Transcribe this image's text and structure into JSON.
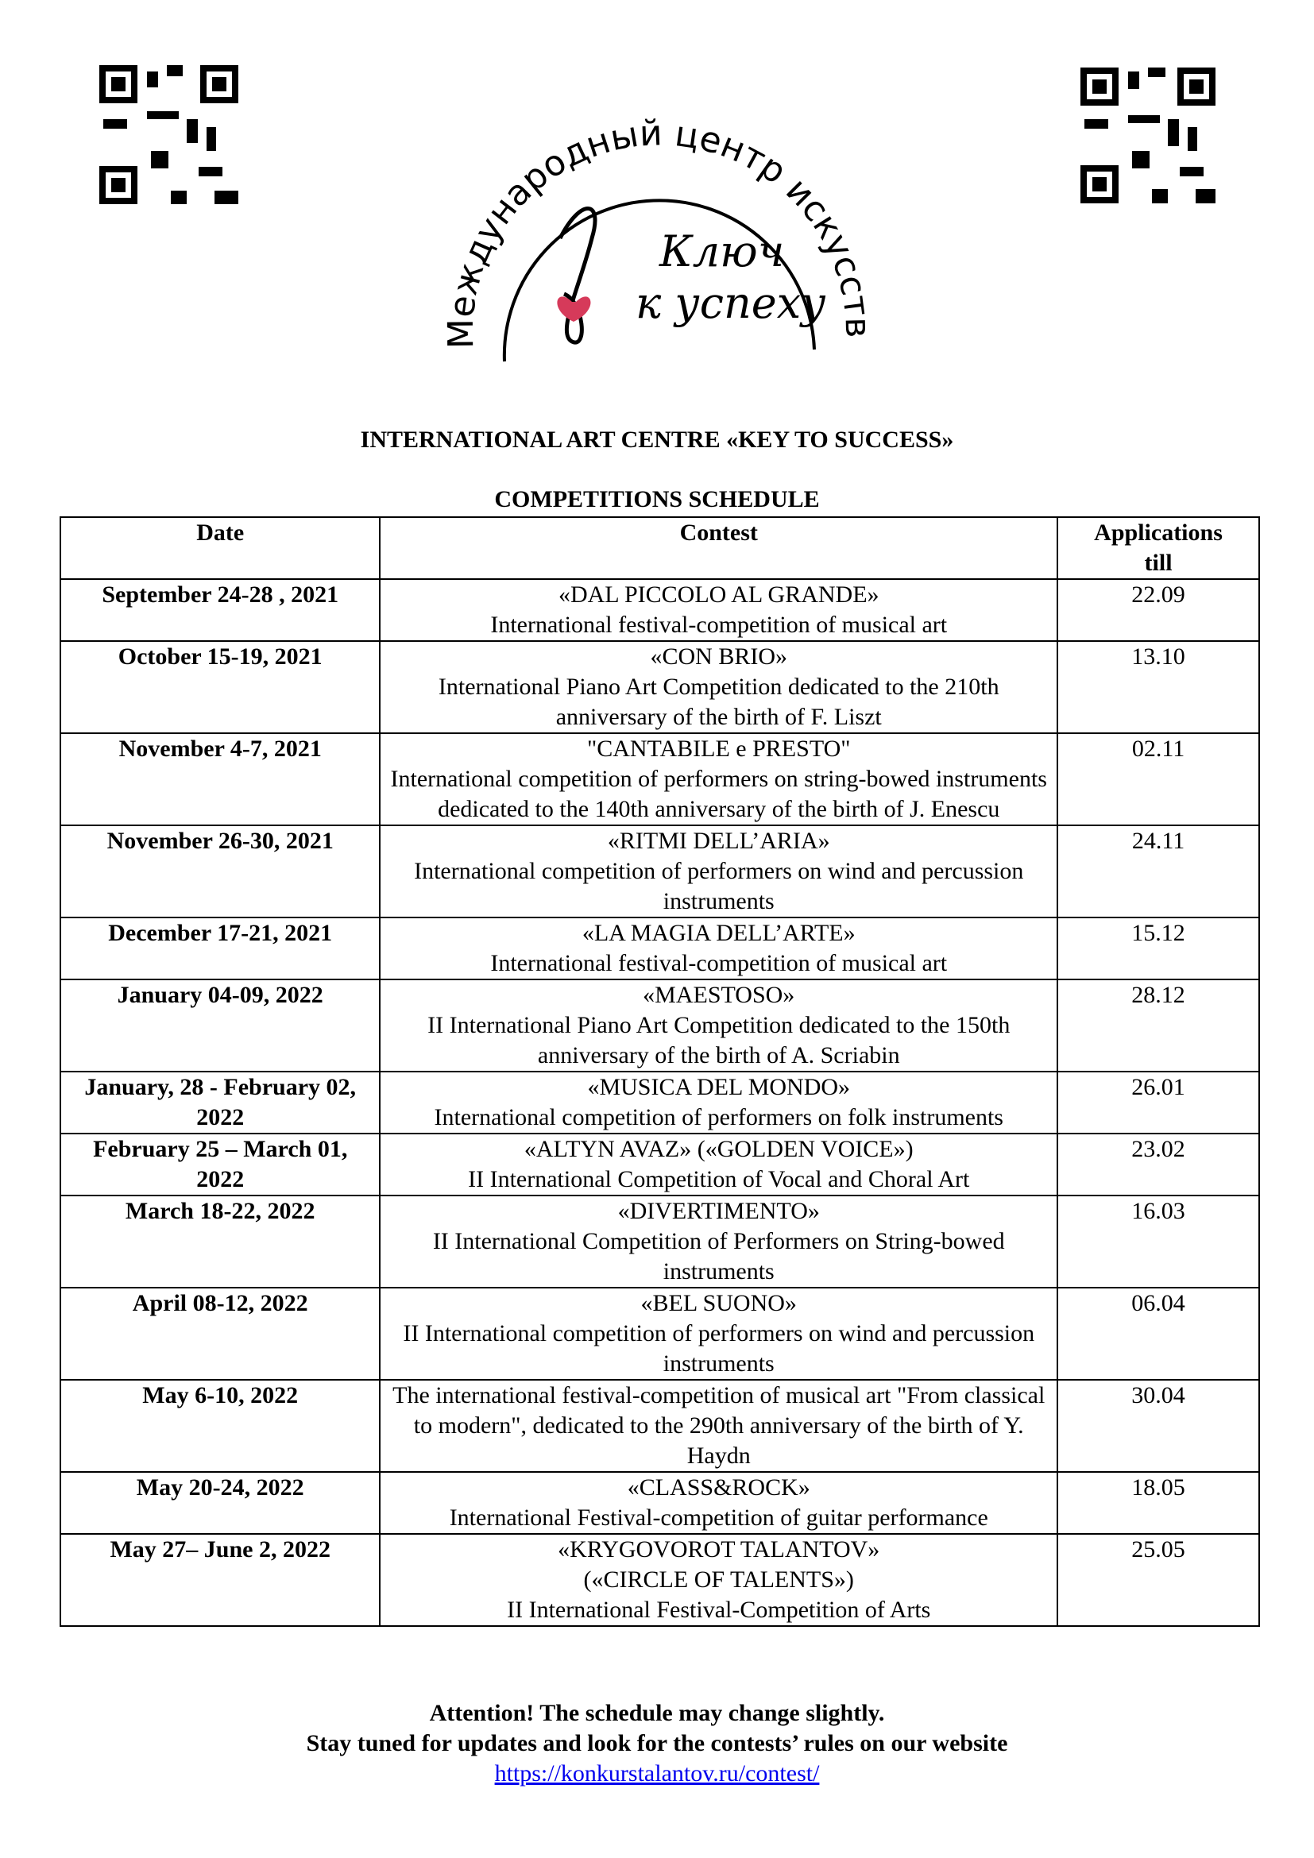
{
  "logo": {
    "arc_text": "Международный центр искусств",
    "line1": "Ключ",
    "line2": "к успеху"
  },
  "title": "INTERNATIONAL ART CENTRE «KEY TO SUCCESS»",
  "subtitle": "COMPETITIONS SCHEDULE",
  "table": {
    "header": [
      "Date",
      "Contest",
      "Applications till"
    ],
    "rows": [
      {
        "date": "September 24-28 , 2021",
        "contest": [
          "«DAL PICCOLO AL GRANDE»",
          "International festival-competition of musical art"
        ],
        "deadline": "22.09"
      },
      {
        "date": "October  15-19, 2021",
        "contest": [
          "«CON BRIO»",
          "International Piano Art Competition dedicated to the 210th anniversary of the birth of F. Liszt"
        ],
        "deadline": "13.10"
      },
      {
        "date": "November 4-7, 2021",
        "contest": [
          "\"CANTABILE e PRESTO\"",
          "International competition of performers on string-bowed instruments dedicated to the 140th anniversary of the birth of J. Enescu"
        ],
        "deadline": "02.11"
      },
      {
        "date": "November 26-30, 2021",
        "contest": [
          "«RITMI DELL’ARIA»",
          "International competition of performers on wind and percussion instruments"
        ],
        "deadline": "24.11"
      },
      {
        "date": "December 17-21, 2021",
        "contest": [
          "«LA MAGIA DELL’ARTE»",
          "International festival-competition of musical art"
        ],
        "deadline": "15.12"
      },
      {
        "date": "January 04-09, 2022",
        "contest": [
          "«MAESTOSO»",
          "II International Piano Art Competition dedicated to the 150th anniversary of the birth of A. Scriabin"
        ],
        "deadline": "28.12"
      },
      {
        "date": "January, 28 - February 02, 2022",
        "contest": [
          "«MUSICA DEL MONDO»",
          "International competition of performers on folk instruments"
        ],
        "deadline": "26.01"
      },
      {
        "date": "February 25 – March 01, 2022",
        "contest": [
          "«ALTYN AVAZ» («GOLDEN VOICE»)",
          "II International Competition of Vocal and Choral Art"
        ],
        "deadline": "23.02"
      },
      {
        "date": "March  18-22, 2022",
        "contest": [
          "«DIVERTIMENTO»",
          "II International Competition of Performers on String-bowed instruments"
        ],
        "deadline": "16.03"
      },
      {
        "date": "April 08-12, 2022",
        "contest": [
          "«BEL SUONO»",
          "II International competition of performers on wind and percussion instruments"
        ],
        "deadline": "06.04"
      },
      {
        "date": "May 6-10, 2022",
        "contest": [
          "The international festival-competition of musical art \"From classical to modern\", dedicated to the 290th anniversary of the birth of Y. Haydn"
        ],
        "deadline": "30.04"
      },
      {
        "date": "May 20-24, 2022",
        "contest": [
          "«CLASS&ROCK»",
          "International Festival-competition of guitar performance"
        ],
        "deadline": "18.05"
      },
      {
        "date": "May 27– June 2, 2022",
        "contest": [
          "«KRYGOVOROT TALANTOV»",
          "(«CIRCLE OF TALENTS»)",
          "II International Festival-Competition of Arts"
        ],
        "deadline": "25.05"
      }
    ]
  },
  "footer": {
    "line1": "Attention! The schedule may change slightly.",
    "line2": "Stay tuned for updates and look for the contests’ rules on our website",
    "link": "https://konkurstalantov.ru/contest/"
  }
}
